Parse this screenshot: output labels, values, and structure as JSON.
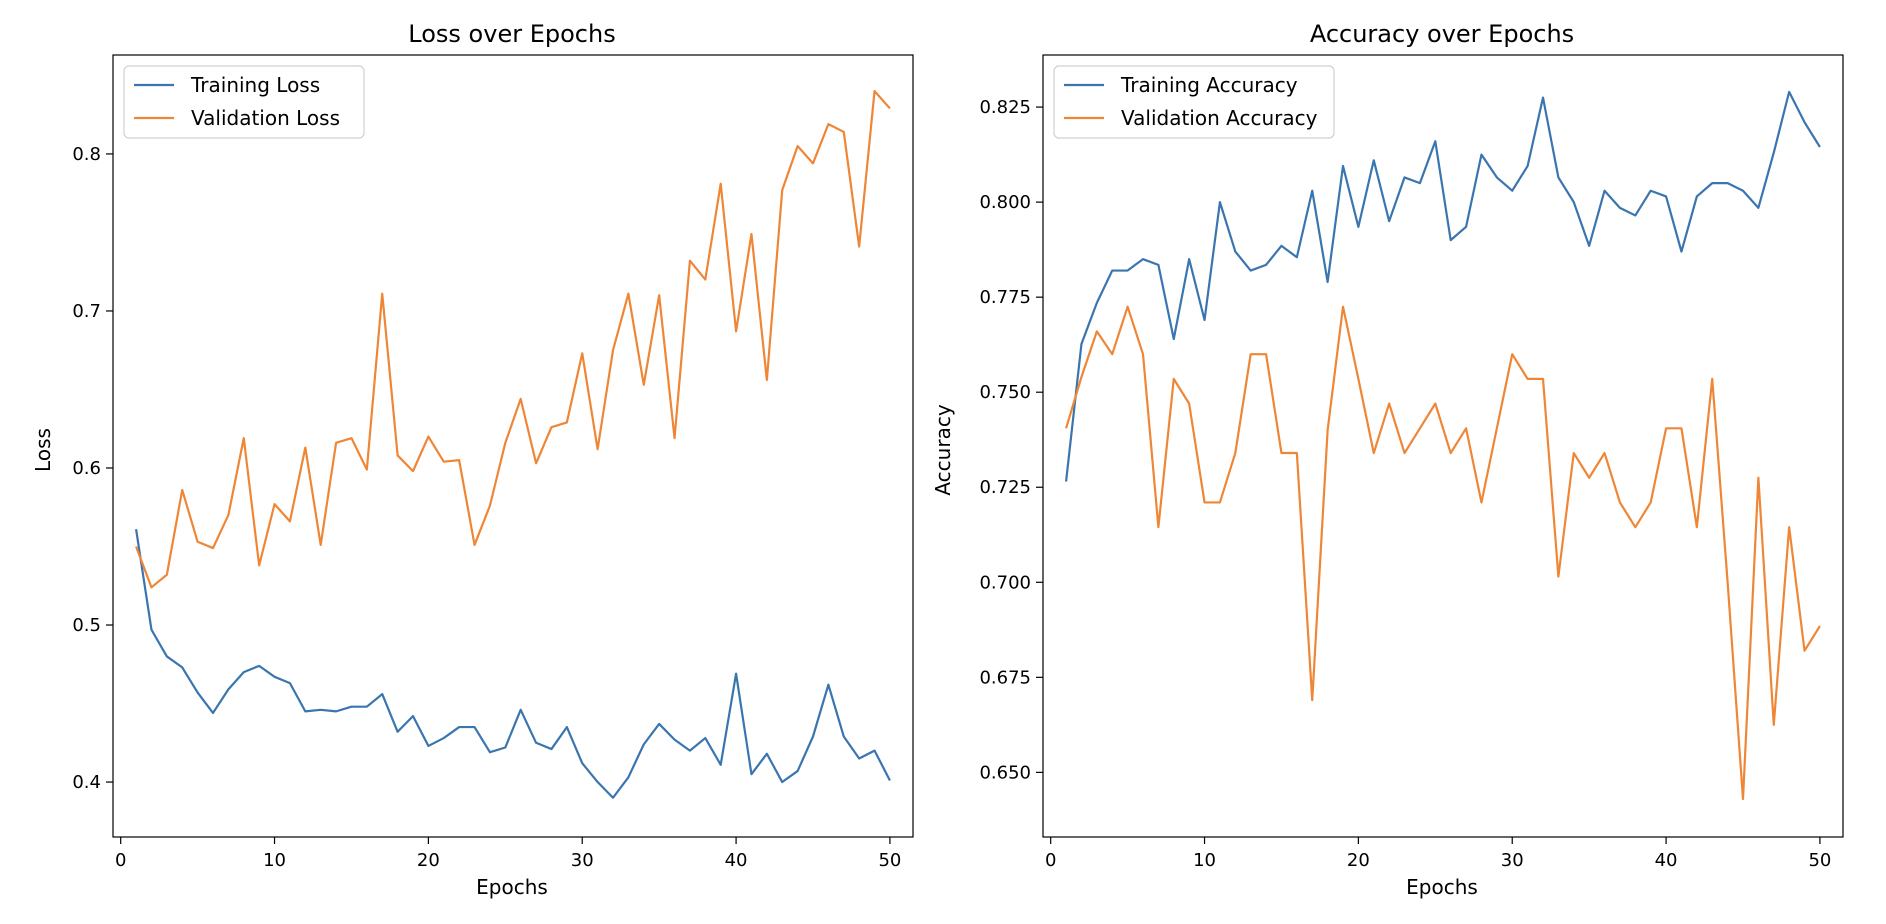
{
  "chart_data": [
    {
      "type": "line",
      "title": "Loss over Epochs",
      "xlabel": "Epochs",
      "ylabel": "Loss",
      "xlim": [
        -0.5,
        51.5
      ],
      "ylim": [
        0.365,
        0.863
      ],
      "xticks": [
        0,
        10,
        20,
        30,
        40,
        50
      ],
      "yticks": [
        0.4,
        0.5,
        0.6,
        0.7,
        0.8
      ],
      "ytick_labels": [
        "0.4",
        "0.5",
        "0.6",
        "0.7",
        "0.8"
      ],
      "grid": false,
      "legend_position": "upper-left",
      "x": [
        1,
        2,
        3,
        4,
        5,
        6,
        7,
        8,
        9,
        10,
        11,
        12,
        13,
        14,
        15,
        16,
        17,
        18,
        19,
        20,
        21,
        22,
        23,
        24,
        25,
        26,
        27,
        28,
        29,
        30,
        31,
        32,
        33,
        34,
        35,
        36,
        37,
        38,
        39,
        40,
        41,
        42,
        43,
        44,
        45,
        46,
        47,
        48,
        49,
        50
      ],
      "series": [
        {
          "name": "Training Loss",
          "color": "#3a75af",
          "values": [
            0.561,
            0.497,
            0.48,
            0.473,
            0.457,
            0.444,
            0.459,
            0.47,
            0.474,
            0.467,
            0.463,
            0.445,
            0.446,
            0.445,
            0.448,
            0.448,
            0.456,
            0.432,
            0.442,
            0.423,
            0.428,
            0.435,
            0.435,
            0.419,
            0.422,
            0.446,
            0.425,
            0.421,
            0.435,
            0.412,
            0.4,
            0.39,
            0.403,
            0.424,
            0.437,
            0.427,
            0.42,
            0.428,
            0.411,
            0.469,
            0.405,
            0.418,
            0.4,
            0.407,
            0.429,
            0.462,
            0.429,
            0.415,
            0.42,
            0.401
          ]
        },
        {
          "name": "Validation Loss",
          "color": "#ef8636",
          "values": [
            0.55,
            0.524,
            0.532,
            0.586,
            0.553,
            0.549,
            0.57,
            0.619,
            0.538,
            0.577,
            0.566,
            0.613,
            0.551,
            0.616,
            0.619,
            0.599,
            0.711,
            0.608,
            0.598,
            0.62,
            0.604,
            0.605,
            0.551,
            0.576,
            0.616,
            0.644,
            0.603,
            0.626,
            0.629,
            0.673,
            0.612,
            0.675,
            0.711,
            0.653,
            0.71,
            0.619,
            0.732,
            0.72,
            0.781,
            0.687,
            0.749,
            0.656,
            0.777,
            0.805,
            0.794,
            0.819,
            0.814,
            0.741,
            0.84,
            0.829
          ]
        }
      ]
    },
    {
      "type": "line",
      "title": "Accuracy over Epochs",
      "xlabel": "Epochs",
      "ylabel": "Accuracy",
      "xlim": [
        -0.5,
        51.5
      ],
      "ylim": [
        0.633,
        0.8387
      ],
      "xticks": [
        0,
        10,
        20,
        30,
        40,
        50
      ],
      "yticks": [
        0.65,
        0.675,
        0.7,
        0.725,
        0.75,
        0.775,
        0.8,
        0.825
      ],
      "ytick_labels": [
        "0.650",
        "0.675",
        "0.700",
        "0.725",
        "0.750",
        "0.775",
        "0.800",
        "0.825"
      ],
      "grid": false,
      "legend_position": "upper-left",
      "x": [
        1,
        2,
        3,
        4,
        5,
        6,
        7,
        8,
        9,
        10,
        11,
        12,
        13,
        14,
        15,
        16,
        17,
        18,
        19,
        20,
        21,
        22,
        23,
        24,
        25,
        26,
        27,
        28,
        29,
        30,
        31,
        32,
        33,
        34,
        35,
        36,
        37,
        38,
        39,
        40,
        41,
        42,
        43,
        44,
        45,
        46,
        47,
        48,
        49,
        50
      ],
      "series": [
        {
          "name": "Training Accuracy",
          "color": "#3a75af",
          "values": [
            0.7265,
            0.7627,
            0.7735,
            0.782,
            0.782,
            0.785,
            0.7835,
            0.764,
            0.785,
            0.769,
            0.8,
            0.787,
            0.782,
            0.7835,
            0.7885,
            0.7855,
            0.803,
            0.779,
            0.8095,
            0.7935,
            0.811,
            0.795,
            0.8065,
            0.805,
            0.816,
            0.79,
            0.7935,
            0.8125,
            0.8065,
            0.803,
            0.8095,
            0.8275,
            0.8065,
            0.8,
            0.7885,
            0.803,
            0.7985,
            0.7965,
            0.803,
            0.8015,
            0.787,
            0.8015,
            0.805,
            0.805,
            0.803,
            0.7985,
            0.813,
            0.829,
            0.821,
            0.8145
          ]
        },
        {
          "name": "Validation Accuracy",
          "color": "#ef8636",
          "values": [
            0.7405,
            0.754,
            0.766,
            0.76,
            0.7725,
            0.76,
            0.7145,
            0.7535,
            0.747,
            0.721,
            0.721,
            0.734,
            0.76,
            0.76,
            0.734,
            0.734,
            0.669,
            0.74,
            0.7725,
            0.7535,
            0.734,
            0.747,
            0.734,
            0.7405,
            0.747,
            0.734,
            0.7405,
            0.721,
            0.7405,
            0.76,
            0.7535,
            0.7535,
            0.7015,
            0.734,
            0.7275,
            0.734,
            0.721,
            0.7145,
            0.721,
            0.7405,
            0.7405,
            0.7145,
            0.7535,
            0.7,
            0.643,
            0.7275,
            0.6625,
            0.7145,
            0.682,
            0.6885
          ]
        }
      ]
    }
  ]
}
